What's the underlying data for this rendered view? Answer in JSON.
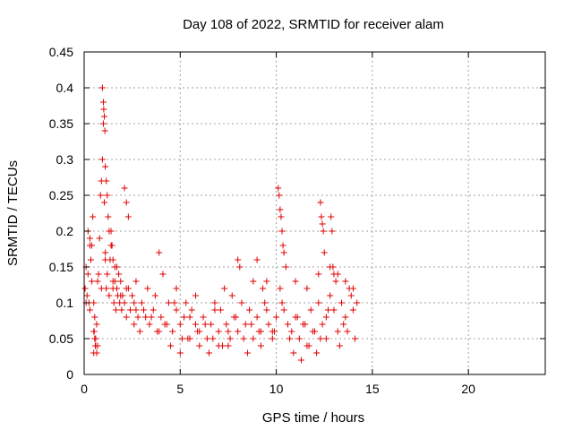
{
  "chart_data": {
    "type": "scatter",
    "title": "Day 108 of 2022, SRMTID for receiver alam",
    "xlabel": "GPS time / hours",
    "ylabel": "SRMTID / TECUs",
    "xlim": [
      0,
      24
    ],
    "ylim": [
      0,
      0.45
    ],
    "xticks": [
      0,
      5,
      10,
      15,
      20
    ],
    "yticks": [
      0,
      0.05,
      0.1,
      0.15,
      0.2,
      0.25,
      0.3,
      0.35,
      0.4,
      0.45
    ],
    "xtick_labels": [
      "0",
      "5",
      "10",
      "15",
      "20"
    ],
    "ytick_labels": [
      "0",
      "0.05",
      "0.1",
      "0.15",
      "0.2",
      "0.25",
      "0.3",
      "0.35",
      "0.4",
      "0.45"
    ],
    "grid": true,
    "marker": "plus",
    "color": "#e00000",
    "series": [
      {
        "name": "alam",
        "x": [
          0.05,
          0.1,
          0.15,
          0.2,
          0.25,
          0.3,
          0.35,
          0.4,
          0.45,
          0.5,
          0.55,
          0.6,
          0.65,
          0.7,
          0.75,
          0.8,
          0.85,
          0.9,
          0.95,
          1.0,
          1.05,
          1.1,
          1.15,
          1.2,
          1.25,
          1.3,
          1.35,
          1.4,
          1.45,
          1.5,
          1.55,
          1.6,
          1.65,
          1.7,
          1.75,
          1.8,
          1.85,
          1.9,
          1.95,
          2.0,
          2.1,
          2.2,
          2.3,
          2.4,
          2.5,
          2.6,
          2.7,
          2.8,
          2.9,
          3.0,
          3.2,
          3.4,
          3.6,
          3.8,
          4.0,
          4.2,
          4.4,
          4.6,
          4.8,
          5.0,
          5.2,
          5.4,
          5.6,
          5.8,
          6.0,
          6.2,
          6.4,
          6.6,
          6.8,
          7.0,
          7.2,
          7.4,
          7.6,
          7.8,
          8.0,
          8.2,
          8.4,
          8.6,
          8.8,
          9.0,
          9.2,
          9.4,
          9.6,
          9.8,
          10.0,
          10.2,
          10.4,
          10.6,
          10.8,
          11.0,
          11.2,
          11.4,
          11.6,
          11.8,
          12.0,
          12.2,
          12.4,
          12.6,
          12.8,
          13.0,
          13.2,
          13.4,
          13.6,
          13.8,
          14.0,
          14.2,
          0.1,
          0.3,
          0.5,
          0.7,
          0.9,
          1.1,
          1.3,
          1.5,
          1.7,
          1.9,
          2.2,
          2.6,
          3.1,
          3.5,
          3.9,
          4.3,
          4.7,
          5.1,
          5.5,
          5.9,
          6.3,
          6.7,
          7.1,
          7.5,
          7.9,
          8.3,
          8.7,
          9.1,
          9.5,
          9.9,
          10.3,
          10.7,
          11.1,
          11.5,
          11.9,
          12.3,
          12.7,
          13.1,
          13.5,
          13.9,
          0.95,
          1.0,
          1.02,
          1.05,
          1.08,
          1.1,
          1.15,
          1.2,
          0.5,
          0.6,
          0.55,
          0.65,
          0.52,
          0.58,
          10.1,
          10.15,
          10.2,
          10.25,
          10.3,
          10.35,
          10.4,
          10.5,
          12.3,
          12.35,
          12.4,
          12.45,
          12.5,
          12.85,
          12.9,
          12.95,
          13.0,
          3.9,
          4.1,
          9.0,
          9.5,
          8.0,
          8.1,
          2.1,
          2.2,
          2.3,
          1.4,
          1.5,
          1.6,
          0.2,
          0.3,
          0.4,
          4.5,
          5.0,
          5.5,
          6.0,
          6.5,
          7.0,
          7.5,
          8.5,
          9.2,
          9.8,
          10.9,
          11.3,
          11.7,
          12.1,
          12.6,
          13.3,
          13.7,
          14.1,
          2.7,
          3.3,
          3.7,
          4.8,
          5.3,
          5.8,
          6.8,
          7.3,
          7.7,
          8.8,
          9.3,
          11.0,
          11.6,
          12.2,
          12.8,
          13.2,
          13.6,
          14.0
        ],
        "y": [
          0.12,
          0.15,
          0.11,
          0.2,
          0.1,
          0.09,
          0.16,
          0.13,
          0.22,
          0.1,
          0.08,
          0.05,
          0.07,
          0.13,
          0.14,
          0.19,
          0.25,
          0.27,
          0.3,
          0.35,
          0.24,
          0.17,
          0.12,
          0.14,
          0.22,
          0.11,
          0.16,
          0.2,
          0.18,
          0.12,
          0.1,
          0.13,
          0.09,
          0.12,
          0.11,
          0.14,
          0.1,
          0.13,
          0.09,
          0.11,
          0.1,
          0.08,
          0.12,
          0.09,
          0.11,
          0.07,
          0.09,
          0.08,
          0.06,
          0.1,
          0.08,
          0.07,
          0.09,
          0.06,
          0.08,
          0.07,
          0.1,
          0.06,
          0.09,
          0.07,
          0.08,
          0.05,
          0.09,
          0.07,
          0.06,
          0.08,
          0.05,
          0.07,
          0.09,
          0.06,
          0.04,
          0.07,
          0.05,
          0.08,
          0.06,
          0.1,
          0.07,
          0.09,
          0.05,
          0.08,
          0.06,
          0.1,
          0.07,
          0.06,
          0.08,
          0.12,
          0.09,
          0.07,
          0.06,
          0.08,
          0.05,
          0.07,
          0.04,
          0.09,
          0.06,
          0.1,
          0.07,
          0.08,
          0.11,
          0.09,
          0.06,
          0.1,
          0.08,
          0.12,
          0.09,
          0.1,
          0.1,
          0.18,
          0.06,
          0.04,
          0.12,
          0.16,
          0.2,
          0.13,
          0.15,
          0.11,
          0.12,
          0.1,
          0.09,
          0.08,
          0.06,
          0.07,
          0.1,
          0.05,
          0.08,
          0.06,
          0.07,
          0.05,
          0.09,
          0.06,
          0.08,
          0.05,
          0.07,
          0.06,
          0.09,
          0.06,
          0.1,
          0.05,
          0.08,
          0.07,
          0.06,
          0.05,
          0.09,
          0.13,
          0.07,
          0.11,
          0.4,
          0.38,
          0.37,
          0.36,
          0.34,
          0.29,
          0.27,
          0.25,
          0.03,
          0.04,
          0.05,
          0.03,
          0.06,
          0.04,
          0.26,
          0.25,
          0.23,
          0.22,
          0.2,
          0.18,
          0.17,
          0.15,
          0.24,
          0.22,
          0.21,
          0.2,
          0.17,
          0.22,
          0.2,
          0.15,
          0.14,
          0.17,
          0.14,
          0.16,
          0.13,
          0.16,
          0.15,
          0.26,
          0.24,
          0.22,
          0.18,
          0.16,
          0.15,
          0.14,
          0.19,
          0.18,
          0.04,
          0.03,
          0.05,
          0.04,
          0.03,
          0.04,
          0.04,
          0.03,
          0.04,
          0.05,
          0.03,
          0.02,
          0.04,
          0.03,
          0.05,
          0.04,
          0.06,
          0.05,
          0.13,
          0.12,
          0.11,
          0.12,
          0.1,
          0.11,
          0.1,
          0.12,
          0.11,
          0.13,
          0.12,
          0.13,
          0.12,
          0.14,
          0.15,
          0.14,
          0.13,
          0.12
        ]
      }
    ]
  }
}
